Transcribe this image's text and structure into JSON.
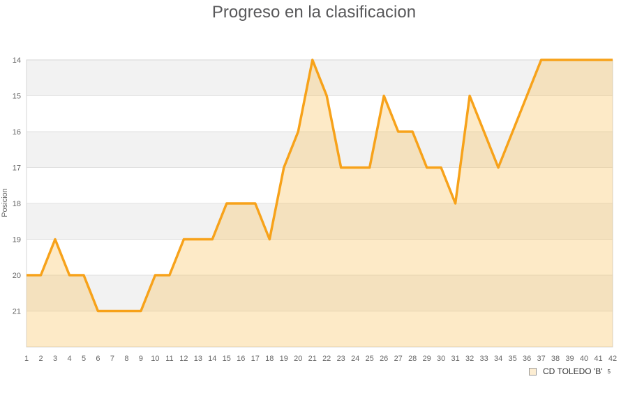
{
  "title": "Progreso en la clasificacion",
  "y_axis": {
    "label": "Posicion",
    "ticks": [
      14,
      15,
      16,
      17,
      18,
      19,
      20,
      21
    ]
  },
  "legend": {
    "label": "CD TOLEDO 'B'",
    "superscript": "5"
  },
  "colors": {
    "line": "#f7a21a",
    "area_fill": "rgba(248,190,80,0.32)",
    "band_gray": "#f2f2f2",
    "band_white": "#ffffff",
    "gridline": "#e0e0e0",
    "plot_border": "#d6d6d6",
    "title_text": "#58585a",
    "axis_text": "#666666",
    "legend_text": "#333333",
    "legend_swatch_fill": "#fcedd2",
    "legend_swatch_border": "#9a9a9a"
  },
  "chart_data": {
    "type": "area",
    "title": "Progreso en la clasificacion",
    "xlabel": "",
    "ylabel": "Posicion",
    "x": [
      1,
      2,
      3,
      4,
      5,
      6,
      7,
      8,
      9,
      10,
      11,
      12,
      13,
      14,
      15,
      16,
      17,
      18,
      19,
      20,
      21,
      22,
      23,
      24,
      25,
      26,
      27,
      28,
      29,
      30,
      31,
      32,
      33,
      34,
      35,
      36,
      37,
      38,
      39,
      40,
      41,
      42
    ],
    "series": [
      {
        "name": "CD TOLEDO 'B'",
        "values": [
          20,
          20,
          19,
          20,
          20,
          21,
          21,
          21,
          21,
          20,
          20,
          19,
          19,
          19,
          18,
          18,
          18,
          19,
          17,
          16,
          14,
          15,
          17,
          17,
          17,
          15,
          16,
          16,
          17,
          17,
          18,
          15,
          16,
          17,
          16,
          15,
          14,
          14,
          14,
          14,
          14,
          14
        ]
      }
    ],
    "ylim": [
      14,
      22
    ],
    "y_ticks": [
      14,
      15,
      16,
      17,
      18,
      19,
      20,
      21
    ],
    "y_inverted": true,
    "grid": true,
    "plot_bands_alternating": true,
    "legend_position": "bottom-right"
  }
}
